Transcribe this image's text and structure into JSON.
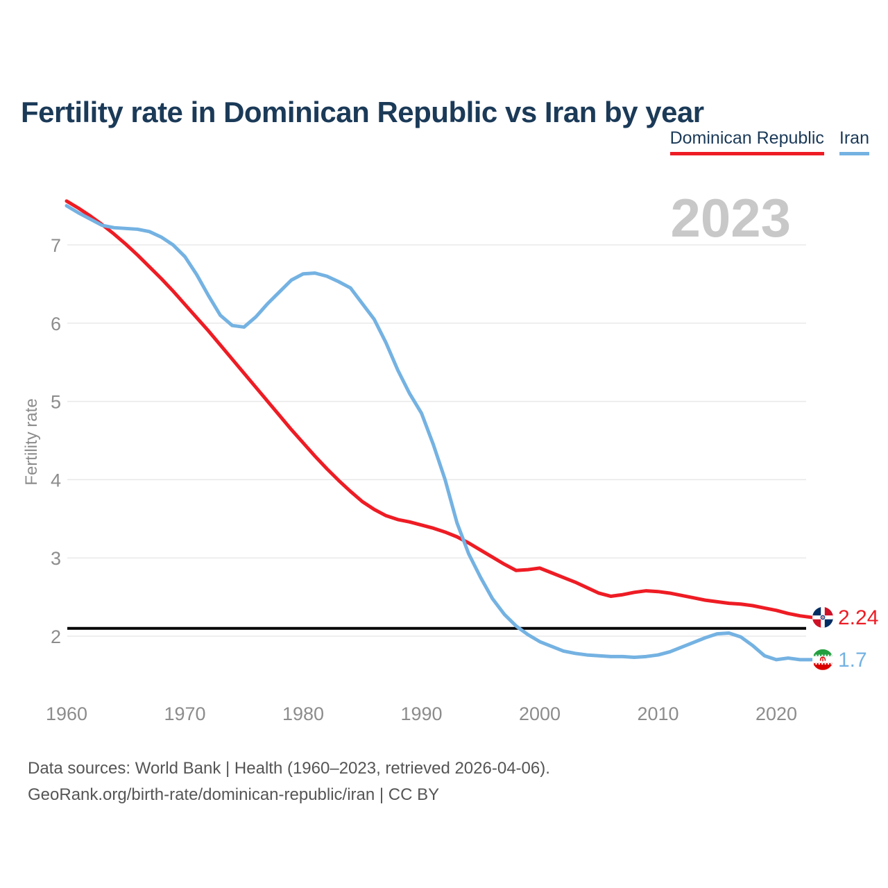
{
  "header": {
    "title": "Fertility rate in Dominican Republic vs Iran by year"
  },
  "legend": {
    "items": [
      {
        "label": "Dominican Republic",
        "color": "#ee1c24"
      },
      {
        "label": "Iran",
        "color": "#74b2e2"
      }
    ]
  },
  "footer": {
    "line1": "Data sources: World Bank | Health (1960–2023, retrieved 2026-04-06).",
    "line2": "GeoRank.org/birth-rate/dominican-republic/iran | CC BY"
  },
  "chart_data": {
    "type": "line",
    "title": "Fertility rate in Dominican Republic vs Iran by year",
    "xlabel": "",
    "ylabel": "Fertility rate",
    "watermark": "2023",
    "grid": "horizontal",
    "legend_position": "top-right",
    "x_ticks": [
      1960,
      1970,
      1980,
      1990,
      2000,
      2010,
      2020
    ],
    "y_ticks": [
      2,
      3,
      4,
      5,
      6,
      7
    ],
    "xlim": [
      1960,
      2023
    ],
    "ylim": [
      1.45,
      7.75
    ],
    "reference_line": {
      "value": 2.1,
      "color": "#000000"
    },
    "years": [
      1960,
      1961,
      1962,
      1963,
      1964,
      1965,
      1966,
      1967,
      1968,
      1969,
      1970,
      1971,
      1972,
      1973,
      1974,
      1975,
      1976,
      1977,
      1978,
      1979,
      1980,
      1981,
      1982,
      1983,
      1984,
      1985,
      1986,
      1987,
      1988,
      1989,
      1990,
      1991,
      1992,
      1993,
      1994,
      1995,
      1996,
      1997,
      1998,
      1999,
      2000,
      2001,
      2002,
      2003,
      2004,
      2005,
      2006,
      2007,
      2008,
      2009,
      2010,
      2011,
      2012,
      2013,
      2014,
      2015,
      2016,
      2017,
      2018,
      2019,
      2020,
      2021,
      2022,
      2023
    ],
    "series": [
      {
        "name": "Dominican Republic",
        "color": "#ee1c24",
        "flag": "dominican-republic",
        "end_label": "2.24",
        "values": [
          7.56,
          7.47,
          7.37,
          7.26,
          7.14,
          7.01,
          6.87,
          6.72,
          6.57,
          6.41,
          6.24,
          6.07,
          5.9,
          5.72,
          5.54,
          5.36,
          5.18,
          5.0,
          4.82,
          4.64,
          4.47,
          4.3,
          4.14,
          3.99,
          3.85,
          3.72,
          3.62,
          3.54,
          3.49,
          3.46,
          3.42,
          3.38,
          3.33,
          3.27,
          3.19,
          3.1,
          3.01,
          2.92,
          2.84,
          2.85,
          2.87,
          2.81,
          2.75,
          2.69,
          2.62,
          2.55,
          2.51,
          2.53,
          2.56,
          2.58,
          2.57,
          2.55,
          2.52,
          2.49,
          2.46,
          2.44,
          2.42,
          2.41,
          2.39,
          2.36,
          2.33,
          2.29,
          2.26,
          2.24
        ]
      },
      {
        "name": "Iran",
        "color": "#74b2e2",
        "flag": "iran",
        "end_label": "1.7",
        "values": [
          7.5,
          7.41,
          7.33,
          7.25,
          7.22,
          7.21,
          7.2,
          7.17,
          7.1,
          7.0,
          6.85,
          6.62,
          6.35,
          6.1,
          5.97,
          5.95,
          6.08,
          6.25,
          6.4,
          6.55,
          6.63,
          6.64,
          6.6,
          6.53,
          6.45,
          6.25,
          6.05,
          5.75,
          5.4,
          5.1,
          4.85,
          4.45,
          4.0,
          3.45,
          3.05,
          2.75,
          2.48,
          2.28,
          2.13,
          2.02,
          1.93,
          1.87,
          1.81,
          1.78,
          1.76,
          1.75,
          1.74,
          1.74,
          1.73,
          1.74,
          1.76,
          1.8,
          1.86,
          1.92,
          1.98,
          2.03,
          2.04,
          1.99,
          1.88,
          1.75,
          1.7,
          1.72,
          1.7,
          1.7
        ]
      }
    ]
  }
}
